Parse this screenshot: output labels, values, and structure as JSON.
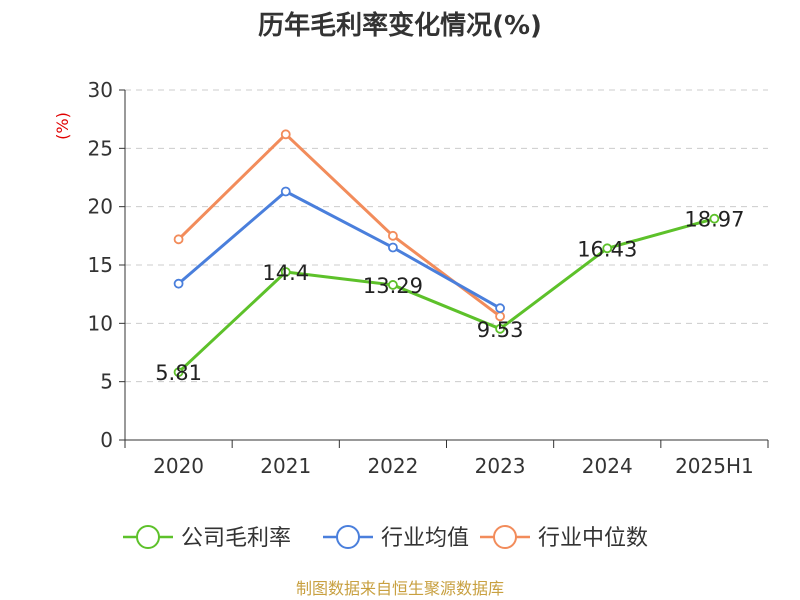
{
  "chart_data": {
    "type": "line",
    "title": "历年毛利率变化情况(%)",
    "ylabel": "(%)",
    "categories": [
      "2020",
      "2021",
      "2022",
      "2023",
      "2024",
      "2025H1"
    ],
    "ylim": [
      0,
      30
    ],
    "yticks": [
      0,
      5,
      10,
      15,
      20,
      25,
      30
    ],
    "grid": true,
    "legend_position": "bottom",
    "series": [
      {
        "name": "公司毛利率",
        "color": "#5dc12a",
        "values": [
          5.81,
          14.4,
          13.29,
          9.53,
          16.43,
          18.97
        ],
        "labels": [
          "5.81",
          "14.4",
          "13.29",
          "9.53",
          "16.43",
          "18.97"
        ]
      },
      {
        "name": "行业均值",
        "color": "#4a7fdc",
        "values": [
          13.4,
          21.3,
          16.5,
          11.3,
          null,
          null
        ]
      },
      {
        "name": "行业中位数",
        "color": "#f28c5b",
        "values": [
          17.2,
          26.2,
          17.5,
          10.6,
          null,
          null
        ]
      }
    ]
  },
  "source_text": "制图数据来自恒生聚源数据库"
}
